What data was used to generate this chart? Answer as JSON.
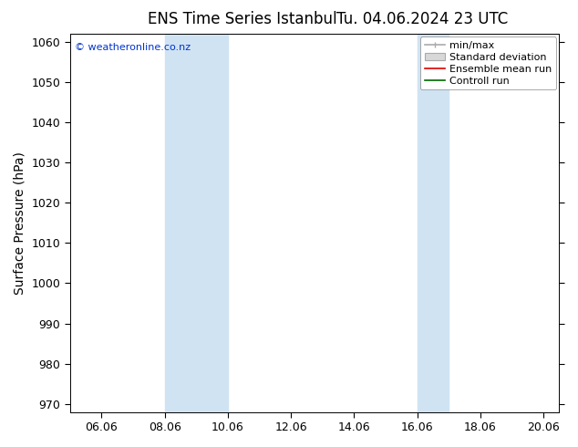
{
  "title_left": "ENS Time Series Istanbul",
  "title_right": "Tu. 04.06.2024 23 UTC",
  "ylabel": "Surface Pressure (hPa)",
  "ylim": [
    968,
    1062
  ],
  "yticks": [
    970,
    980,
    990,
    1000,
    1010,
    1020,
    1030,
    1040,
    1050,
    1060
  ],
  "xtick_labels": [
    "06.06",
    "08.06",
    "10.06",
    "12.06",
    "14.06",
    "16.06",
    "18.06",
    "20.06"
  ],
  "xtick_positions": [
    1,
    3,
    5,
    7,
    9,
    11,
    13,
    15
  ],
  "xlim": [
    0,
    15.5
  ],
  "shaded_bands": [
    {
      "start": 3.0,
      "end": 5.0
    },
    {
      "start": 11.0,
      "end": 12.0
    }
  ],
  "band_color": "#cfe3f3",
  "background_color": "#ffffff",
  "watermark_text": "© weatheronline.co.nz",
  "watermark_color": "#0033cc",
  "legend_labels": [
    "min/max",
    "Standard deviation",
    "Ensemble mean run",
    "Controll run"
  ],
  "legend_line_color": "#aaaaaa",
  "legend_std_color": "#d8d8d8",
  "legend_ens_color": "#dd0000",
  "legend_ctrl_color": "#006600",
  "title_fontsize": 12,
  "tick_fontsize": 9,
  "ylabel_fontsize": 10,
  "legend_fontsize": 8
}
